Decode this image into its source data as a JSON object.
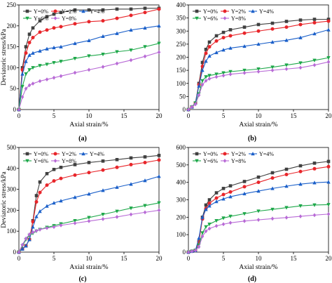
{
  "chart_data": [
    {
      "type": "line",
      "caption": "(a)",
      "xlabel": "Axial strain/%",
      "ylabel": "Deviatoric stress/kPa",
      "xlim": [
        0,
        20
      ],
      "ylim": [
        0,
        250
      ],
      "xticks": [
        "0",
        "5",
        "10",
        "15",
        "20"
      ],
      "yticks": [
        "0",
        "50",
        "100",
        "150",
        "200",
        "250"
      ],
      "series": [
        {
          "name": "Y=0%",
          "color": "#404040",
          "marker": "square",
          "x": [
            0,
            0.5,
            1,
            1.5,
            2,
            3,
            4,
            5,
            6,
            8,
            10,
            12,
            14,
            16,
            18,
            20
          ],
          "y": [
            0,
            100,
            150,
            180,
            195,
            212,
            222,
            228,
            232,
            238,
            238,
            238,
            240,
            240,
            242,
            242
          ]
        },
        {
          "name": "Y=2%",
          "color": "#e8252a",
          "marker": "circle",
          "x": [
            0,
            0.5,
            1,
            1.5,
            2,
            3,
            4,
            5,
            6,
            8,
            10,
            12,
            14,
            16,
            18,
            20
          ],
          "y": [
            0,
            95,
            135,
            160,
            172,
            185,
            190,
            195,
            198,
            205,
            210,
            212,
            218,
            225,
            232,
            240
          ]
        },
        {
          "name": "Y=4%",
          "color": "#1a5fc9",
          "marker": "triangle-up",
          "x": [
            0,
            0.5,
            1,
            1.5,
            2,
            3,
            4,
            5,
            6,
            8,
            10,
            12,
            14,
            16,
            18,
            20
          ],
          "y": [
            0,
            85,
            115,
            130,
            135,
            140,
            145,
            148,
            150,
            158,
            165,
            175,
            182,
            190,
            195,
            200
          ]
        },
        {
          "name": "Y=6%",
          "color": "#1ea84a",
          "marker": "triangle-down",
          "x": [
            0,
            0.5,
            1,
            1.5,
            2,
            3,
            4,
            5,
            6,
            8,
            10,
            12,
            14,
            16,
            18,
            20
          ],
          "y": [
            0,
            55,
            85,
            95,
            100,
            105,
            108,
            112,
            115,
            122,
            128,
            132,
            138,
            142,
            150,
            158
          ]
        },
        {
          "name": "Y=8%",
          "color": "#b86ad6",
          "marker": "diamond",
          "x": [
            0,
            0.5,
            1,
            1.5,
            2,
            3,
            4,
            5,
            6,
            8,
            10,
            12,
            14,
            16,
            18,
            20
          ],
          "y": [
            0,
            30,
            50,
            58,
            62,
            68,
            72,
            76,
            80,
            88,
            95,
            102,
            110,
            118,
            127,
            137
          ]
        }
      ]
    },
    {
      "type": "line",
      "caption": "(b)",
      "xlabel": "Axial strain/%",
      "ylabel": "",
      "xlim": [
        0,
        20
      ],
      "ylim": [
        0,
        400
      ],
      "xticks": [
        "0",
        "5",
        "10",
        "15",
        "20"
      ],
      "yticks": [
        "0",
        "50",
        "100",
        "150",
        "200",
        "250",
        "300",
        "350",
        "400"
      ],
      "series": [
        {
          "name": "Y=0%",
          "color": "#404040",
          "marker": "square",
          "x": [
            0,
            0.5,
            1,
            1.5,
            2,
            2.5,
            3,
            4,
            5,
            6,
            8,
            10,
            12,
            14,
            16,
            18,
            20
          ],
          "y": [
            0,
            10,
            25,
            100,
            180,
            230,
            258,
            282,
            295,
            305,
            315,
            325,
            330,
            337,
            342,
            345,
            345
          ]
        },
        {
          "name": "Y=2%",
          "color": "#e8252a",
          "marker": "circle",
          "x": [
            0,
            0.5,
            1,
            1.5,
            2,
            2.5,
            3,
            4,
            5,
            6,
            8,
            10,
            12,
            14,
            16,
            18,
            20
          ],
          "y": [
            0,
            10,
            25,
            95,
            165,
            215,
            240,
            262,
            275,
            282,
            292,
            300,
            308,
            315,
            325,
            332,
            338
          ]
        },
        {
          "name": "Y=4%",
          "color": "#1a5fc9",
          "marker": "triangle-up",
          "x": [
            0,
            0.5,
            1,
            1.5,
            2,
            2.5,
            3,
            4,
            5,
            6,
            8,
            10,
            12,
            14,
            16,
            18,
            20
          ],
          "y": [
            0,
            10,
            25,
            90,
            150,
            185,
            205,
            218,
            228,
            235,
            242,
            250,
            258,
            265,
            275,
            290,
            305
          ]
        },
        {
          "name": "Y=6%",
          "color": "#1ea84a",
          "marker": "triangle-down",
          "x": [
            0,
            0.5,
            1,
            1.5,
            2,
            2.5,
            3,
            4,
            5,
            6,
            8,
            10,
            12,
            14,
            16,
            18,
            20
          ],
          "y": [
            0,
            10,
            25,
            60,
            110,
            125,
            130,
            135,
            140,
            145,
            150,
            155,
            162,
            170,
            178,
            188,
            198
          ]
        },
        {
          "name": "Y=8%",
          "color": "#b86ad6",
          "marker": "diamond",
          "x": [
            0,
            0.5,
            1,
            1.5,
            2,
            2.5,
            3,
            4,
            5,
            6,
            8,
            10,
            12,
            14,
            16,
            18,
            20
          ],
          "y": [
            0,
            10,
            20,
            55,
            95,
            110,
            118,
            125,
            130,
            135,
            140,
            145,
            150,
            155,
            160,
            170,
            182
          ]
        }
      ]
    },
    {
      "type": "line",
      "caption": "(c)",
      "xlabel": "Axial strain/%",
      "ylabel": "Deviatoric stress/kPa",
      "xlim": [
        0,
        20
      ],
      "ylim": [
        0,
        500
      ],
      "xticks": [
        "0",
        "5",
        "10",
        "15",
        "20"
      ],
      "yticks": [
        "0",
        "100",
        "200",
        "300",
        "400",
        "500"
      ],
      "series": [
        {
          "name": "Y=0%",
          "color": "#404040",
          "marker": "square",
          "x": [
            0,
            0.5,
            1,
            1.5,
            2,
            2.5,
            3,
            4,
            5,
            6,
            8,
            10,
            12,
            14,
            16,
            18,
            20
          ],
          "y": [
            0,
            15,
            30,
            60,
            150,
            270,
            335,
            375,
            395,
            405,
            418,
            428,
            435,
            442,
            450,
            455,
            462
          ]
        },
        {
          "name": "Y=2%",
          "color": "#e8252a",
          "marker": "circle",
          "x": [
            0,
            0.5,
            1,
            1.5,
            2,
            2.5,
            3,
            4,
            5,
            6,
            8,
            10,
            12,
            14,
            16,
            18,
            20
          ],
          "y": [
            0,
            15,
            30,
            60,
            145,
            240,
            285,
            320,
            340,
            352,
            368,
            380,
            392,
            405,
            418,
            428,
            440
          ]
        },
        {
          "name": "Y=4%",
          "color": "#1a5fc9",
          "marker": "triangle-up",
          "x": [
            0,
            0.5,
            1,
            1.5,
            2,
            2.5,
            3,
            4,
            5,
            6,
            8,
            10,
            12,
            14,
            16,
            18,
            20
          ],
          "y": [
            0,
            15,
            30,
            60,
            120,
            170,
            195,
            220,
            235,
            245,
            262,
            278,
            295,
            310,
            325,
            342,
            362
          ]
        },
        {
          "name": "Y=6%",
          "color": "#1ea84a",
          "marker": "triangle-down",
          "x": [
            0,
            0.5,
            1,
            1.5,
            2,
            2.5,
            3,
            4,
            5,
            6,
            8,
            10,
            12,
            14,
            16,
            18,
            20
          ],
          "y": [
            0,
            30,
            60,
            80,
            90,
            100,
            108,
            118,
            126,
            135,
            150,
            165,
            180,
            195,
            210,
            222,
            235
          ]
        },
        {
          "name": "Y=8%",
          "color": "#b86ad6",
          "marker": "diamond",
          "x": [
            0,
            0.5,
            1,
            1.5,
            2,
            2.5,
            3,
            4,
            5,
            6,
            8,
            10,
            12,
            14,
            16,
            18,
            20
          ],
          "y": [
            0,
            35,
            65,
            85,
            95,
            102,
            108,
            115,
            120,
            128,
            138,
            148,
            158,
            168,
            180,
            190,
            200
          ]
        }
      ]
    },
    {
      "type": "line",
      "caption": "(d)",
      "xlabel": "Axial strain/%",
      "ylabel": "",
      "xlim": [
        0,
        20
      ],
      "ylim": [
        0,
        600
      ],
      "xticks": [
        "0",
        "5",
        "10",
        "15",
        "20"
      ],
      "yticks": [
        "0",
        "100",
        "200",
        "300",
        "400",
        "500",
        "600"
      ],
      "series": [
        {
          "name": "Y=0%",
          "color": "#404040",
          "marker": "square",
          "x": [
            0,
            0.5,
            1,
            1.5,
            2,
            2.5,
            3,
            4,
            5,
            6,
            8,
            10,
            12,
            14,
            16,
            18,
            20
          ],
          "y": [
            0,
            5,
            10,
            60,
            200,
            270,
            300,
            340,
            365,
            380,
            405,
            430,
            455,
            475,
            495,
            510,
            520
          ]
        },
        {
          "name": "Y=2%",
          "color": "#e8252a",
          "marker": "circle",
          "x": [
            0,
            0.5,
            1,
            1.5,
            2,
            2.5,
            3,
            4,
            5,
            6,
            8,
            10,
            12,
            14,
            16,
            18,
            20
          ],
          "y": [
            0,
            5,
            10,
            60,
            190,
            250,
            280,
            310,
            330,
            345,
            375,
            400,
            425,
            445,
            462,
            478,
            490
          ]
        },
        {
          "name": "Y=4%",
          "color": "#1a5fc9",
          "marker": "triangle-up",
          "x": [
            0,
            0.5,
            1,
            1.5,
            2,
            2.5,
            3,
            4,
            5,
            6,
            8,
            10,
            12,
            14,
            16,
            18,
            20
          ],
          "y": [
            0,
            5,
            10,
            80,
            200,
            245,
            265,
            290,
            305,
            318,
            335,
            350,
            365,
            378,
            390,
            398,
            402
          ]
        },
        {
          "name": "Y=6%",
          "color": "#1ea84a",
          "marker": "triangle-down",
          "x": [
            0,
            0.5,
            1,
            1.5,
            2,
            2.5,
            3,
            4,
            5,
            6,
            8,
            10,
            12,
            14,
            16,
            18,
            20
          ],
          "y": [
            0,
            5,
            10,
            40,
            110,
            145,
            160,
            180,
            195,
            205,
            220,
            235,
            245,
            255,
            265,
            270,
            272
          ]
        },
        {
          "name": "Y=8%",
          "color": "#b86ad6",
          "marker": "diamond",
          "x": [
            0,
            0.5,
            1,
            1.5,
            2,
            2.5,
            3,
            4,
            5,
            6,
            8,
            10,
            12,
            14,
            16,
            18,
            20
          ],
          "y": [
            0,
            5,
            10,
            30,
            90,
            120,
            135,
            150,
            160,
            168,
            178,
            185,
            192,
            198,
            205,
            212,
            218
          ]
        }
      ]
    }
  ]
}
